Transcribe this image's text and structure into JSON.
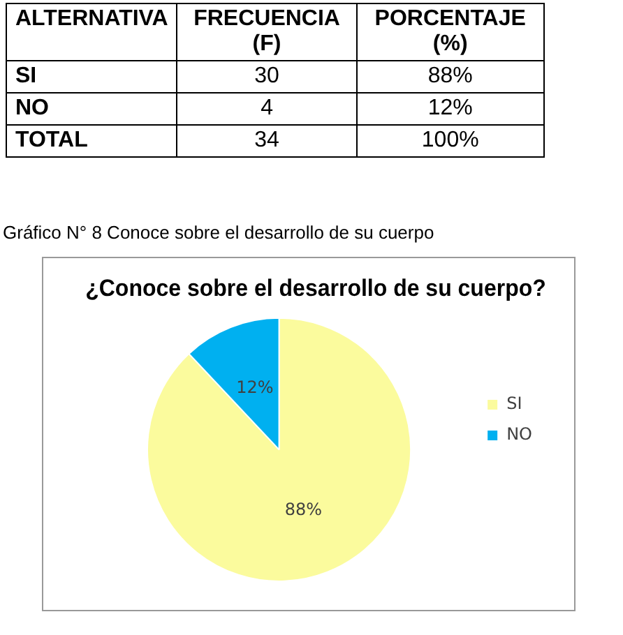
{
  "chart_data": [
    {
      "type": "other",
      "annotations": [
        "ALTERNATIVA",
        "FRECUENCIA (F)",
        "PORCENTAJE (%)",
        "SI",
        "30",
        "88%",
        "NO",
        "4",
        "12%",
        "TOTAL",
        "34",
        "100%"
      ]
    },
    {
      "type": "pie",
      "title": "¿Conoce sobre el desarrollo de su cuerpo?",
      "categories": [
        "SI",
        "NO"
      ],
      "values": [
        88,
        12
      ],
      "colors": [
        "#fbfb9d",
        "#00b0f0"
      ],
      "value_labels": [
        "88%",
        "12%"
      ],
      "legend": "right",
      "annotations": [
        "Gráfico N° 8  Conoce sobre el desarrollo de su cuerpo"
      ]
    }
  ]
}
